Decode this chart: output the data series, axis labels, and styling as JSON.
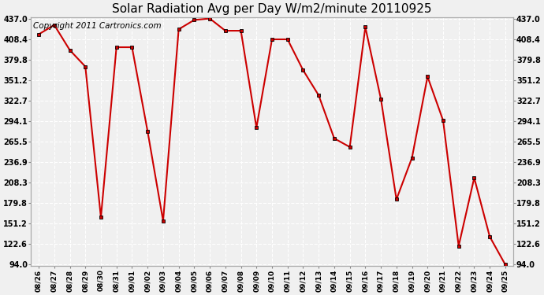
{
  "title": "Solar Radiation Avg per Day W/m2/minute 20110925",
  "copyright_text": "Copyright 2011 Cartronics.com",
  "dates": [
    "08/26",
    "08/27",
    "08/28",
    "08/29",
    "08/30",
    "08/31",
    "09/01",
    "09/02",
    "09/03",
    "09/04",
    "09/05",
    "09/06",
    "09/07",
    "09/08",
    "09/09",
    "09/10",
    "09/11",
    "09/12",
    "09/13",
    "09/14",
    "09/15",
    "09/16",
    "09/17",
    "09/18",
    "09/19",
    "09/20",
    "09/21",
    "09/22",
    "09/23",
    "09/24",
    "09/25"
  ],
  "values": [
    415.0,
    428.0,
    393.0,
    370.0,
    160.0,
    397.0,
    397.0,
    280.0,
    155.0,
    422.0,
    435.0,
    437.0,
    420.0,
    420.0,
    285.0,
    408.0,
    408.0,
    365.0,
    330.0,
    270.0,
    258.0,
    425.0,
    325.0,
    185.0,
    243.0,
    356.0,
    295.0,
    120.0,
    215.0,
    133.0,
    94.0
  ],
  "yticks": [
    94.0,
    122.6,
    151.2,
    179.8,
    208.3,
    236.9,
    265.5,
    294.1,
    322.7,
    351.2,
    379.8,
    408.4,
    437.0
  ],
  "ymin": 94.0,
  "ymax": 437.0,
  "line_color": "#cc0000",
  "marker_color": "#000000",
  "bg_color": "#f0f0f0",
  "title_fontsize": 11,
  "copyright_fontsize": 7.5
}
